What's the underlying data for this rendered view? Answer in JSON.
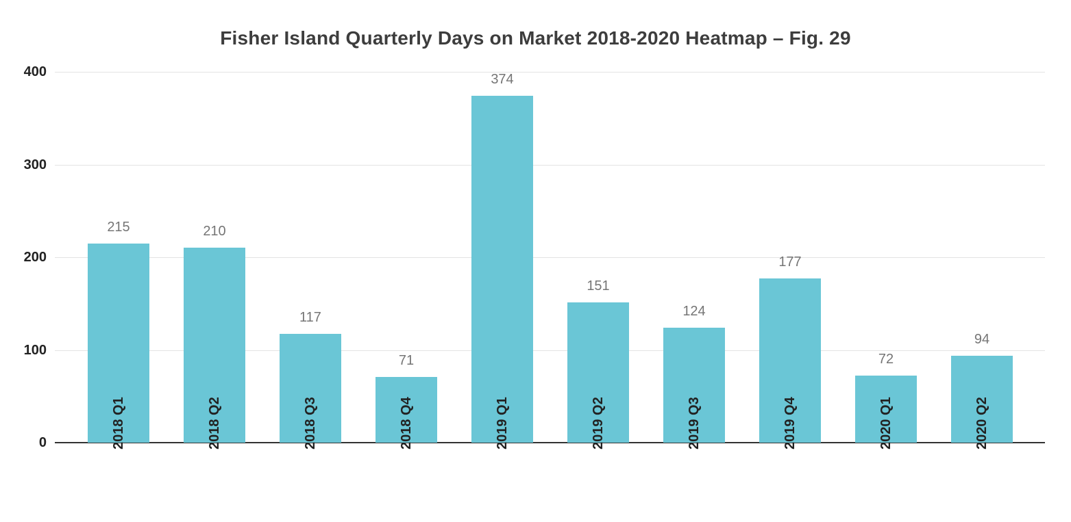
{
  "title": "Fisher Island Quarterly Days on Market 2018-2020 Heatmap – Fig. 29",
  "chart_data": {
    "type": "bar",
    "title": "Fisher Island Quarterly Days on Market 2018-2020 Heatmap – Fig. 29",
    "categories": [
      "2018 Q1",
      "2018 Q2",
      "2018 Q3",
      "2018 Q4",
      "2019 Q1",
      "2019 Q2",
      "2019 Q3",
      "2019 Q4",
      "2020 Q1",
      "2020 Q2"
    ],
    "values": [
      215,
      210,
      117,
      71,
      374,
      151,
      124,
      177,
      72,
      94
    ],
    "xlabel": "",
    "ylabel": "",
    "ylim": [
      0,
      400
    ],
    "yticks": [
      0,
      100,
      200,
      300,
      400
    ],
    "grid": true,
    "legend_position": "none",
    "bar_color": "#6AC6D6",
    "value_label_color": "#757575",
    "axis_text_color": "#222222",
    "title_color": "#3d3d3d",
    "gridline_color": "#e3e3e3",
    "baseline_color": "#333333"
  }
}
